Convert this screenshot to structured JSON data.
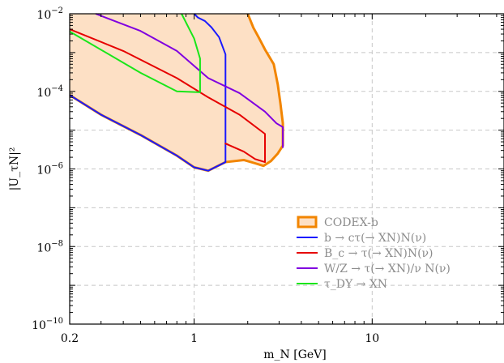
{
  "chart_data": {
    "type": "line",
    "title": "",
    "xlabel": "m_N [GeV]",
    "ylabel": "|U_τN|²",
    "xscale": "log",
    "yscale": "log",
    "xlim": [
      0.2,
      55
    ],
    "ylim": [
      1e-10,
      0.01
    ],
    "grid": true,
    "legend_position": "bottom-right",
    "x_ticks": [
      {
        "value": 0.2,
        "label": "0.2"
      },
      {
        "value": 1,
        "label": "1"
      },
      {
        "value": 10,
        "label": "10"
      }
    ],
    "y_ticks": [
      {
        "value": 1e-10,
        "base": "10",
        "exp": "−10"
      },
      {
        "value": 1e-08,
        "base": "10",
        "exp": "−8"
      },
      {
        "value": 1e-06,
        "base": "10",
        "exp": "−6"
      },
      {
        "value": 0.0001,
        "base": "10",
        "exp": "−4"
      },
      {
        "value": 0.01,
        "base": "10",
        "exp": "−2"
      }
    ],
    "region": {
      "name": "CODEX-b",
      "fill": "#fde0c5",
      "stroke": "#f28500",
      "points": [
        [
          0.2,
          0.01
        ],
        [
          2.0,
          0.01
        ],
        [
          2.15,
          0.0044
        ],
        [
          2.3,
          0.0025
        ],
        [
          2.5,
          0.0012
        ],
        [
          2.8,
          0.0005
        ],
        [
          2.95,
          0.00015
        ],
        [
          3.05,
          5e-05
        ],
        [
          3.15,
          1.5e-05
        ],
        [
          3.15,
          4e-06
        ],
        [
          2.95,
          2.5e-06
        ],
        [
          2.7,
          1.6e-06
        ],
        [
          2.45,
          1.2e-06
        ],
        [
          2.2,
          1.4e-06
        ],
        [
          1.9,
          1.7e-06
        ],
        [
          1.5,
          1.5e-06
        ],
        [
          1.2,
          9e-07
        ],
        [
          1.0,
          1.1e-06
        ],
        [
          0.8,
          2.2e-06
        ],
        [
          0.5,
          7.5e-06
        ],
        [
          0.3,
          2.5e-05
        ],
        [
          0.2,
          8e-05
        ]
      ]
    },
    "series": [
      {
        "name": "b → cτ(→ XN)N(ν)",
        "color": "#1a1aff",
        "points": [
          [
            1.0,
            0.01
          ],
          [
            1.05,
            0.008
          ],
          [
            1.15,
            0.0065
          ],
          [
            1.25,
            0.0045
          ],
          [
            1.38,
            0.0025
          ],
          [
            1.5,
            0.0009
          ],
          [
            1.5,
            1.5e-06
          ],
          [
            1.2,
            9e-07
          ],
          [
            1.0,
            1.1e-06
          ],
          [
            0.8,
            2.2e-06
          ],
          [
            0.5,
            7.5e-06
          ],
          [
            0.3,
            2.5e-05
          ],
          [
            0.2,
            8e-05
          ]
        ]
      },
      {
        "name": "B_c → τ(→ XN)N(ν)",
        "color": "#e60000",
        "points": [
          [
            0.2,
            0.004
          ],
          [
            0.4,
            0.0011
          ],
          [
            0.8,
            0.00022
          ],
          [
            1.2,
            7e-05
          ],
          [
            1.8,
            2.5e-05
          ],
          [
            2.5,
            8e-06
          ],
          [
            2.5,
            1.5e-06
          ],
          [
            2.2,
            1.8e-06
          ],
          [
            1.9,
            2.8e-06
          ],
          [
            1.5,
            4.5e-06
          ],
          [
            1.55,
            4.3e-06
          ]
        ]
      },
      {
        "name": "W/Z → τ(→ XN)/ν N(ν)",
        "color": "#8000e0",
        "points": [
          [
            0.28,
            0.01
          ],
          [
            0.5,
            0.0036
          ],
          [
            0.8,
            0.0011
          ],
          [
            1.2,
            0.00022
          ],
          [
            1.8,
            9e-05
          ],
          [
            2.5,
            3e-05
          ],
          [
            2.9,
            1.5e-05
          ],
          [
            3.15,
            1.2e-05
          ],
          [
            3.15,
            3.5e-06
          ]
        ]
      },
      {
        "name": "τ_DY → XN",
        "color": "#19e619",
        "points": [
          [
            0.2,
            0.0035
          ],
          [
            0.5,
            0.0003
          ],
          [
            0.8,
            0.0001
          ],
          [
            1.08,
            9.5e-05
          ],
          [
            1.08,
            0.0007
          ],
          [
            1.0,
            0.0023
          ],
          [
            0.85,
            0.01
          ]
        ]
      }
    ],
    "legend": [
      {
        "kind": "patch",
        "label": "CODEX-b"
      },
      {
        "kind": "line",
        "series": 0,
        "label": "b → cτ(→ XN)N(ν)"
      },
      {
        "kind": "line",
        "series": 1,
        "label": "B_c → τ(→ XN)N(ν)"
      },
      {
        "kind": "line",
        "series": 2,
        "label": "W/Z → τ(→ XN)/ν N(ν)"
      },
      {
        "kind": "line",
        "series": 3,
        "label": "τ_DY → XN"
      }
    ]
  }
}
